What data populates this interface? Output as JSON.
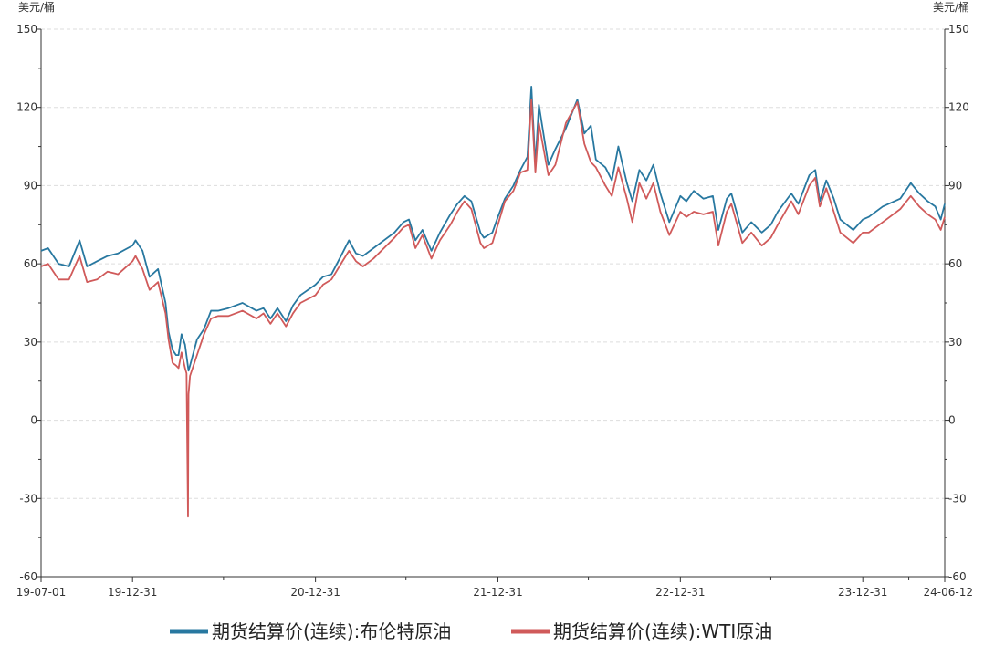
{
  "chart_data": {
    "type": "line",
    "title": "",
    "left_unit": "美元/桶",
    "right_unit": "美元/桶",
    "ylim": [
      -60,
      150
    ],
    "yticks": [
      "150",
      "120",
      "90",
      "60",
      "30",
      "0",
      "-30",
      "-60"
    ],
    "ytick_values": [
      150,
      120,
      90,
      60,
      30,
      0,
      -30,
      -60
    ],
    "xlim": [
      "2019-07-01",
      "2024-06-12"
    ],
    "xticks": [
      {
        "date": "2019-07-01",
        "label": "19-07-01"
      },
      {
        "date": "2019-12-31",
        "label": "19-12-31"
      },
      {
        "date": "2020-12-31",
        "label": "20-12-31"
      },
      {
        "date": "2021-12-31",
        "label": "21-12-31"
      },
      {
        "date": "2022-12-31",
        "label": "22-12-31"
      },
      {
        "date": "2023-12-31",
        "label": "23-12-31"
      },
      {
        "date": "2024-06-12",
        "label": "24-06-12"
      }
    ],
    "grid": true,
    "legend_position": "bottom",
    "series": [
      {
        "name": "期货结算价(连续):布伦特原油",
        "color": "#2878a0",
        "points": [
          [
            "2019-07-01",
            65
          ],
          [
            "2019-07-15",
            66
          ],
          [
            "2019-08-05",
            60
          ],
          [
            "2019-08-26",
            59
          ],
          [
            "2019-09-16",
            69
          ],
          [
            "2019-10-01",
            59
          ],
          [
            "2019-10-21",
            61
          ],
          [
            "2019-11-11",
            63
          ],
          [
            "2019-12-02",
            64
          ],
          [
            "2019-12-31",
            67
          ],
          [
            "2020-01-06",
            69
          ],
          [
            "2020-01-20",
            65
          ],
          [
            "2020-02-03",
            55
          ],
          [
            "2020-02-20",
            58
          ],
          [
            "2020-03-06",
            45
          ],
          [
            "2020-03-12",
            34
          ],
          [
            "2020-03-20",
            27
          ],
          [
            "2020-03-27",
            25
          ],
          [
            "2020-04-01",
            25
          ],
          [
            "2020-04-07",
            33
          ],
          [
            "2020-04-14",
            29
          ],
          [
            "2020-04-21",
            19
          ],
          [
            "2020-04-24",
            21
          ],
          [
            "2020-05-08",
            31
          ],
          [
            "2020-05-22",
            35
          ],
          [
            "2020-06-05",
            42
          ],
          [
            "2020-06-19",
            42
          ],
          [
            "2020-07-10",
            43
          ],
          [
            "2020-08-07",
            45
          ],
          [
            "2020-09-04",
            42
          ],
          [
            "2020-09-18",
            43
          ],
          [
            "2020-10-02",
            39
          ],
          [
            "2020-10-16",
            43
          ],
          [
            "2020-11-02",
            38
          ],
          [
            "2020-11-16",
            44
          ],
          [
            "2020-12-01",
            48
          ],
          [
            "2020-12-31",
            52
          ],
          [
            "2021-01-15",
            55
          ],
          [
            "2021-02-01",
            56
          ],
          [
            "2021-02-20",
            63
          ],
          [
            "2021-03-08",
            69
          ],
          [
            "2021-03-22",
            64
          ],
          [
            "2021-04-05",
            63
          ],
          [
            "2021-04-26",
            66
          ],
          [
            "2021-05-17",
            69
          ],
          [
            "2021-06-07",
            72
          ],
          [
            "2021-06-25",
            76
          ],
          [
            "2021-07-06",
            77
          ],
          [
            "2021-07-19",
            69
          ],
          [
            "2021-08-02",
            73
          ],
          [
            "2021-08-20",
            65
          ],
          [
            "2021-09-06",
            72
          ],
          [
            "2021-09-27",
            79
          ],
          [
            "2021-10-11",
            83
          ],
          [
            "2021-10-25",
            86
          ],
          [
            "2021-11-08",
            84
          ],
          [
            "2021-11-26",
            72
          ],
          [
            "2021-12-03",
            70
          ],
          [
            "2021-12-20",
            72
          ],
          [
            "2021-12-31",
            78
          ],
          [
            "2022-01-14",
            85
          ],
          [
            "2022-01-31",
            90
          ],
          [
            "2022-02-14",
            96
          ],
          [
            "2022-02-28",
            101
          ],
          [
            "2022-03-08",
            128
          ],
          [
            "2022-03-16",
            98
          ],
          [
            "2022-03-23",
            121
          ],
          [
            "2022-04-11",
            98
          ],
          [
            "2022-04-25",
            104
          ],
          [
            "2022-05-16",
            112
          ],
          [
            "2022-06-08",
            123
          ],
          [
            "2022-06-22",
            110
          ],
          [
            "2022-07-05",
            113
          ],
          [
            "2022-07-15",
            100
          ],
          [
            "2022-08-03",
            97
          ],
          [
            "2022-08-16",
            92
          ],
          [
            "2022-08-29",
            105
          ],
          [
            "2022-09-15",
            91
          ],
          [
            "2022-09-26",
            84
          ],
          [
            "2022-10-10",
            96
          ],
          [
            "2022-10-24",
            92
          ],
          [
            "2022-11-07",
            98
          ],
          [
            "2022-11-21",
            87
          ],
          [
            "2022-12-09",
            76
          ],
          [
            "2022-12-31",
            86
          ],
          [
            "2023-01-12",
            84
          ],
          [
            "2023-01-27",
            88
          ],
          [
            "2023-02-15",
            85
          ],
          [
            "2023-03-06",
            86
          ],
          [
            "2023-03-17",
            73
          ],
          [
            "2023-04-03",
            85
          ],
          [
            "2023-04-12",
            87
          ],
          [
            "2023-05-04",
            72
          ],
          [
            "2023-05-22",
            76
          ],
          [
            "2023-06-12",
            72
          ],
          [
            "2023-06-30",
            75
          ],
          [
            "2023-07-14",
            80
          ],
          [
            "2023-08-10",
            87
          ],
          [
            "2023-08-24",
            83
          ],
          [
            "2023-09-15",
            94
          ],
          [
            "2023-09-27",
            96
          ],
          [
            "2023-10-06",
            84
          ],
          [
            "2023-10-19",
            92
          ],
          [
            "2023-11-03",
            85
          ],
          [
            "2023-11-16",
            77
          ],
          [
            "2023-12-12",
            73
          ],
          [
            "2023-12-31",
            77
          ],
          [
            "2024-01-12",
            78
          ],
          [
            "2024-02-09",
            82
          ],
          [
            "2024-03-15",
            85
          ],
          [
            "2024-04-05",
            91
          ],
          [
            "2024-04-22",
            87
          ],
          [
            "2024-05-09",
            84
          ],
          [
            "2024-05-24",
            82
          ],
          [
            "2024-06-04",
            77
          ],
          [
            "2024-06-12",
            83
          ]
        ]
      },
      {
        "name": "期货结算价(连续):WTI原油",
        "color": "#d05a5a",
        "points": [
          [
            "2019-07-01",
            59
          ],
          [
            "2019-07-15",
            60
          ],
          [
            "2019-08-05",
            54
          ],
          [
            "2019-08-26",
            54
          ],
          [
            "2019-09-16",
            63
          ],
          [
            "2019-10-01",
            53
          ],
          [
            "2019-10-21",
            54
          ],
          [
            "2019-11-11",
            57
          ],
          [
            "2019-12-02",
            56
          ],
          [
            "2019-12-31",
            61
          ],
          [
            "2020-01-06",
            63
          ],
          [
            "2020-01-20",
            58
          ],
          [
            "2020-02-03",
            50
          ],
          [
            "2020-02-20",
            53
          ],
          [
            "2020-03-06",
            41
          ],
          [
            "2020-03-12",
            31
          ],
          [
            "2020-03-20",
            22
          ],
          [
            "2020-03-27",
            21
          ],
          [
            "2020-04-01",
            20
          ],
          [
            "2020-04-07",
            26
          ],
          [
            "2020-04-14",
            20
          ],
          [
            "2020-04-17",
            18
          ],
          [
            "2020-04-20",
            -37
          ],
          [
            "2020-04-21",
            10
          ],
          [
            "2020-04-24",
            17
          ],
          [
            "2020-05-08",
            25
          ],
          [
            "2020-05-22",
            33
          ],
          [
            "2020-06-05",
            39
          ],
          [
            "2020-06-19",
            40
          ],
          [
            "2020-07-10",
            40
          ],
          [
            "2020-08-07",
            42
          ],
          [
            "2020-09-04",
            39
          ],
          [
            "2020-09-18",
            41
          ],
          [
            "2020-10-02",
            37
          ],
          [
            "2020-10-16",
            41
          ],
          [
            "2020-11-02",
            36
          ],
          [
            "2020-11-16",
            41
          ],
          [
            "2020-12-01",
            45
          ],
          [
            "2020-12-31",
            48
          ],
          [
            "2021-01-15",
            52
          ],
          [
            "2021-02-01",
            54
          ],
          [
            "2021-02-20",
            60
          ],
          [
            "2021-03-08",
            65
          ],
          [
            "2021-03-22",
            61
          ],
          [
            "2021-04-05",
            59
          ],
          [
            "2021-04-26",
            62
          ],
          [
            "2021-05-17",
            66
          ],
          [
            "2021-06-07",
            70
          ],
          [
            "2021-06-25",
            74
          ],
          [
            "2021-07-06",
            75
          ],
          [
            "2021-07-19",
            66
          ],
          [
            "2021-08-02",
            71
          ],
          [
            "2021-08-20",
            62
          ],
          [
            "2021-09-06",
            69
          ],
          [
            "2021-09-27",
            75
          ],
          [
            "2021-10-11",
            80
          ],
          [
            "2021-10-25",
            84
          ],
          [
            "2021-11-08",
            81
          ],
          [
            "2021-11-26",
            68
          ],
          [
            "2021-12-03",
            66
          ],
          [
            "2021-12-20",
            68
          ],
          [
            "2021-12-31",
            75
          ],
          [
            "2022-01-14",
            84
          ],
          [
            "2022-01-31",
            88
          ],
          [
            "2022-02-14",
            95
          ],
          [
            "2022-02-28",
            96
          ],
          [
            "2022-03-08",
            123
          ],
          [
            "2022-03-16",
            95
          ],
          [
            "2022-03-23",
            114
          ],
          [
            "2022-04-11",
            94
          ],
          [
            "2022-04-25",
            98
          ],
          [
            "2022-05-16",
            114
          ],
          [
            "2022-06-08",
            122
          ],
          [
            "2022-06-22",
            106
          ],
          [
            "2022-07-05",
            99
          ],
          [
            "2022-07-15",
            97
          ],
          [
            "2022-08-03",
            90
          ],
          [
            "2022-08-16",
            86
          ],
          [
            "2022-08-29",
            97
          ],
          [
            "2022-09-15",
            85
          ],
          [
            "2022-09-26",
            76
          ],
          [
            "2022-10-10",
            91
          ],
          [
            "2022-10-24",
            85
          ],
          [
            "2022-11-07",
            91
          ],
          [
            "2022-11-21",
            80
          ],
          [
            "2022-12-09",
            71
          ],
          [
            "2022-12-31",
            80
          ],
          [
            "2023-01-12",
            78
          ],
          [
            "2023-01-27",
            80
          ],
          [
            "2023-02-15",
            79
          ],
          [
            "2023-03-06",
            80
          ],
          [
            "2023-03-17",
            67
          ],
          [
            "2023-04-03",
            80
          ],
          [
            "2023-04-12",
            83
          ],
          [
            "2023-05-04",
            68
          ],
          [
            "2023-05-22",
            72
          ],
          [
            "2023-06-12",
            67
          ],
          [
            "2023-06-30",
            70
          ],
          [
            "2023-07-14",
            75
          ],
          [
            "2023-08-10",
            84
          ],
          [
            "2023-08-24",
            79
          ],
          [
            "2023-09-15",
            90
          ],
          [
            "2023-09-27",
            93
          ],
          [
            "2023-10-06",
            82
          ],
          [
            "2023-10-19",
            89
          ],
          [
            "2023-11-03",
            80
          ],
          [
            "2023-11-16",
            72
          ],
          [
            "2023-12-12",
            68
          ],
          [
            "2023-12-31",
            72
          ],
          [
            "2024-01-12",
            72
          ],
          [
            "2024-02-09",
            76
          ],
          [
            "2024-03-15",
            81
          ],
          [
            "2024-04-05",
            86
          ],
          [
            "2024-04-22",
            82
          ],
          [
            "2024-05-09",
            79
          ],
          [
            "2024-05-24",
            77
          ],
          [
            "2024-06-04",
            73
          ],
          [
            "2024-06-12",
            78
          ]
        ]
      }
    ]
  }
}
